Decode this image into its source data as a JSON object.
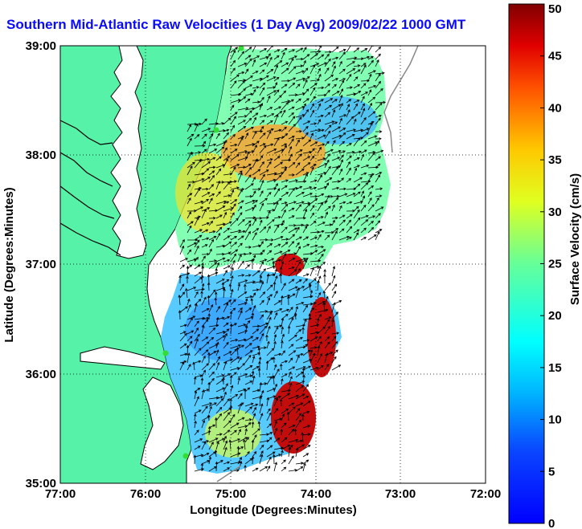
{
  "title": "Southern Mid-Atlantic Raw Velocities (1 Day Avg) 2009/02/22 1000 GMT",
  "map": {
    "xlabel": "Longitude (Degrees:Minutes)",
    "ylabel": "Latitude (Degrees:Minutes)",
    "x_ticks": [
      "77:00",
      "76:00",
      "75:00",
      "74:00",
      "73:00",
      "72:00"
    ],
    "y_ticks": [
      "39:00",
      "38:00",
      "37:00",
      "36:00",
      "35:00"
    ],
    "grid": "dotted",
    "colors": {
      "land": "#55f2a8",
      "water": "#ffffff",
      "coast": "#000000",
      "title": "#0a0aff"
    }
  },
  "colorbar": {
    "label": "Surface Velocity (cm/s)",
    "ticks": [
      "50",
      "45",
      "40",
      "35",
      "30",
      "25",
      "20",
      "15",
      "10",
      "5",
      "0"
    ],
    "range": [
      0,
      50
    ],
    "colormap": "jet"
  }
}
